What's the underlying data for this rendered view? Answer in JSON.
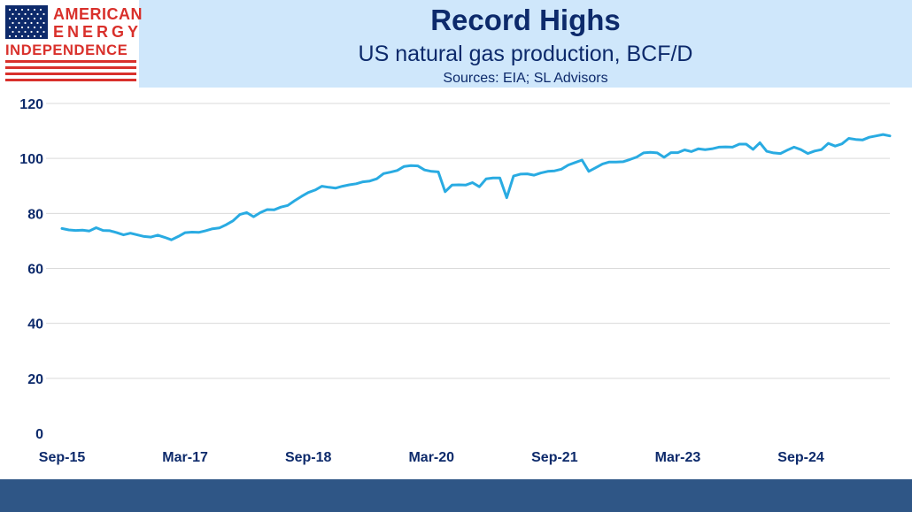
{
  "header": {
    "title": "Record Highs",
    "subtitle": "US natural gas production, BCF/D",
    "sources": "Sources: EIA; SL Advisors"
  },
  "logo": {
    "line1": "AMERICAN",
    "line2": "ENERGY",
    "line3": "INDEPENDENCE",
    "colors": {
      "red": "#d9302b",
      "navy": "#0d2a6b"
    }
  },
  "chart_data": {
    "type": "line",
    "title": "Record Highs",
    "subtitle": "US natural gas production, BCF/D",
    "xlabel": "",
    "ylabel": "",
    "ylim": [
      0,
      120
    ],
    "yticks": [
      0,
      20,
      40,
      60,
      80,
      100,
      120
    ],
    "xticks": [
      "Sep-15",
      "Mar-17",
      "Sep-18",
      "Mar-20",
      "Sep-21",
      "Mar-23",
      "Sep-24"
    ],
    "xtick_index": [
      0,
      18,
      36,
      54,
      72,
      90,
      108
    ],
    "grid": true,
    "legend": "none",
    "line_color": "#29abe2",
    "series": [
      {
        "values": [
          74.5,
          74.0,
          73.8,
          73.9,
          73.6,
          74.8,
          73.8,
          73.7,
          73.0,
          72.2,
          72.8,
          72.2,
          71.6,
          71.4,
          72.1,
          71.3,
          70.4,
          71.6,
          73.0,
          73.2,
          73.1,
          73.7,
          74.4,
          74.7,
          75.9,
          77.3,
          79.6,
          80.3,
          78.8,
          80.3,
          81.4,
          81.3,
          82.3,
          82.9,
          84.6,
          86.2,
          87.6,
          88.5,
          89.9,
          89.5,
          89.2,
          89.9,
          90.4,
          90.8,
          91.5,
          91.8,
          92.6,
          94.5,
          95.0,
          95.6,
          97.1,
          97.4,
          97.3,
          95.8,
          95.3,
          95.1,
          87.9,
          90.3,
          90.4,
          90.3,
          91.2,
          89.7,
          92.6,
          92.9,
          92.9,
          85.7,
          93.6,
          94.3,
          94.4,
          93.9,
          94.7,
          95.3,
          95.5,
          96.1,
          97.6,
          98.5,
          99.4,
          95.3,
          96.6,
          98.0,
          98.7,
          98.7,
          98.8,
          99.6,
          100.5,
          102.0,
          102.2,
          102.0,
          100.4,
          102.1,
          102.1,
          103.1,
          102.5,
          103.5,
          103.2,
          103.5,
          104.1,
          104.2,
          104.1,
          105.2,
          105.2,
          103.3,
          105.7,
          102.6,
          102.0,
          101.8,
          103.0,
          104.1,
          103.2,
          101.8,
          102.7,
          103.2,
          105.5,
          104.5,
          105.3,
          107.3,
          106.9,
          106.7,
          107.7,
          108.2,
          108.7,
          108.2
        ]
      }
    ]
  }
}
